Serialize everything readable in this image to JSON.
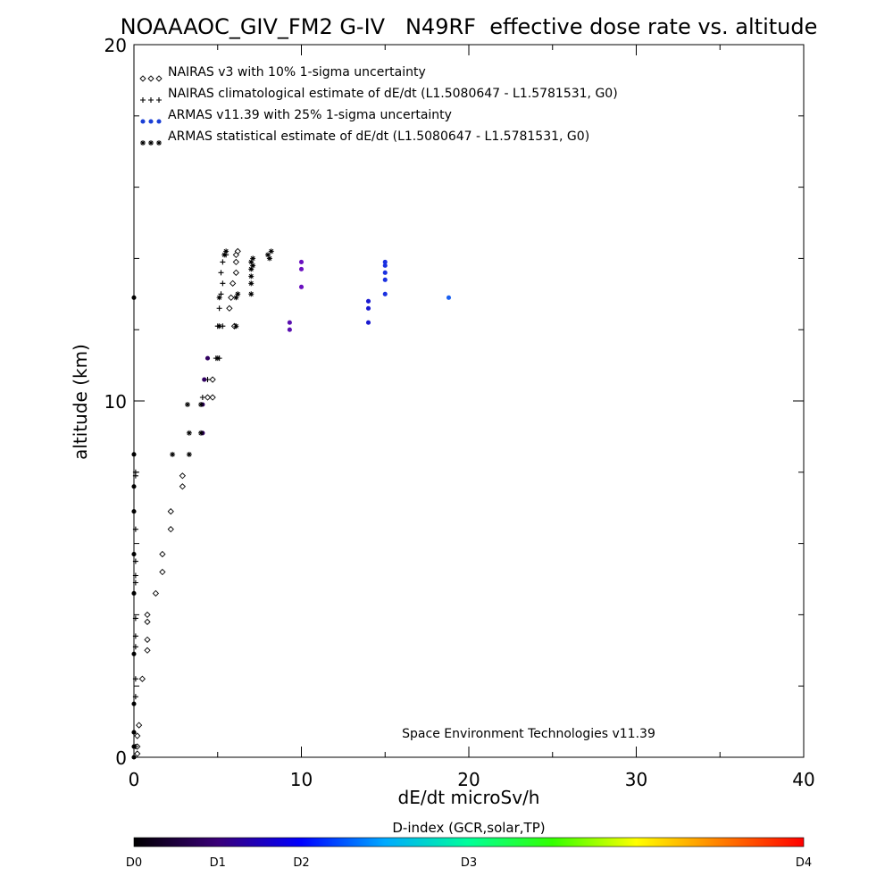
{
  "chart_data": {
    "type": "scatter",
    "title": "NOAAAOC_GIV_FM2 G-IV   N49RF  effective dose rate vs. altitude",
    "xlabel": "dE/dt microSv/h",
    "ylabel": "altitude (km)",
    "xlim": [
      0,
      40
    ],
    "ylim": [
      0,
      20
    ],
    "x_ticks": [
      0,
      10,
      20,
      30,
      40
    ],
    "y_ticks": [
      0,
      10,
      20
    ],
    "x_minor_step": 5,
    "y_minor_step": 2,
    "grid": false,
    "legend_position": "top-left",
    "annotation": "Space Environment Technologies v11.39",
    "colorbar": {
      "title": "D-index (GCR,solar,TP)",
      "labels": [
        {
          "text": "D0",
          "value": 0
        },
        {
          "text": "D1",
          "value": 5
        },
        {
          "text": "D2",
          "value": 10
        },
        {
          "text": "D3",
          "value": 20
        },
        {
          "text": "D4",
          "value": 40
        }
      ],
      "range": [
        0,
        40
      ],
      "gradient": [
        "#000000",
        "#3a0078",
        "#0000ff",
        "#00aaff",
        "#00ff99",
        "#33ff00",
        "#ffff00",
        "#ff7f00",
        "#ff0000"
      ]
    },
    "series": [
      {
        "name": "NAIRAS v3 with 10% 1-sigma uncertainty",
        "marker": "diamond",
        "color": "#000000",
        "points": [
          [
            0.2,
            0.1
          ],
          [
            0.2,
            0.3
          ],
          [
            0.2,
            0.6
          ],
          [
            0.3,
            0.9
          ],
          [
            0.5,
            2.2
          ],
          [
            0.8,
            3.0
          ],
          [
            0.8,
            3.3
          ],
          [
            0.8,
            3.8
          ],
          [
            0.8,
            4.0
          ],
          [
            1.3,
            4.6
          ],
          [
            1.7,
            5.2
          ],
          [
            1.7,
            5.7
          ],
          [
            2.2,
            6.4
          ],
          [
            2.2,
            6.9
          ],
          [
            2.9,
            7.6
          ],
          [
            2.9,
            7.9
          ],
          [
            4.4,
            10.1
          ],
          [
            4.7,
            10.1
          ],
          [
            4.7,
            10.6
          ],
          [
            6.0,
            12.1
          ],
          [
            5.7,
            12.6
          ],
          [
            5.8,
            12.9
          ],
          [
            5.9,
            13.3
          ],
          [
            6.1,
            13.6
          ],
          [
            6.1,
            13.9
          ],
          [
            6.1,
            14.1
          ],
          [
            6.2,
            14.2
          ]
        ]
      },
      {
        "name": "NAIRAS climatological estimate of dE/dt (L1.5080647 - L1.5781531, G0)",
        "marker": "plus",
        "color": "#000000",
        "points": [
          [
            0.1,
            0.3
          ],
          [
            0.1,
            1.7
          ],
          [
            0.1,
            2.2
          ],
          [
            0.1,
            3.1
          ],
          [
            0.1,
            3.4
          ],
          [
            0.1,
            3.9
          ],
          [
            0.1,
            4.9
          ],
          [
            0.1,
            5.1
          ],
          [
            0.1,
            5.5
          ],
          [
            0.1,
            6.4
          ],
          [
            0.1,
            7.9
          ],
          [
            0.1,
            8.0
          ],
          [
            4.1,
            10.1
          ],
          [
            4.4,
            10.6
          ],
          [
            4.9,
            11.2
          ],
          [
            5.1,
            11.2
          ],
          [
            5.0,
            12.1
          ],
          [
            5.3,
            12.1
          ],
          [
            5.1,
            12.6
          ],
          [
            5.2,
            13.0
          ],
          [
            5.3,
            13.3
          ],
          [
            5.2,
            13.6
          ],
          [
            5.3,
            13.9
          ],
          [
            5.5,
            14.1
          ]
        ]
      },
      {
        "name": "ARMAS v11.39 with 25% 1-sigma uncertainty",
        "marker": "circle",
        "color": "#1a3fd6",
        "points": [
          [
            0.0,
            0.0
          ],
          [
            0.0,
            0.3
          ],
          [
            0.0,
            0.7
          ],
          [
            0.0,
            1.5
          ],
          [
            0.0,
            2.9
          ],
          [
            0.0,
            4.6
          ],
          [
            0.0,
            5.7
          ],
          [
            0.0,
            6.9
          ],
          [
            0.0,
            7.6
          ],
          [
            0.0,
            8.5
          ],
          [
            0.0,
            12.9
          ],
          [
            4.1,
            9.1
          ],
          [
            4.1,
            9.9
          ],
          [
            4.2,
            10.6
          ],
          [
            4.4,
            11.2
          ],
          [
            9.3,
            12.0
          ],
          [
            9.3,
            12.2
          ],
          [
            10.0,
            13.2
          ],
          [
            10.0,
            13.7
          ],
          [
            10.0,
            13.9
          ],
          [
            14.0,
            12.2
          ],
          [
            14.0,
            12.6
          ],
          [
            14.0,
            12.8
          ],
          [
            15.0,
            13.0
          ],
          [
            15.0,
            13.4
          ],
          [
            15.0,
            13.6
          ],
          [
            15.0,
            13.8
          ],
          [
            15.0,
            13.9
          ],
          [
            18.8,
            12.9
          ]
        ],
        "point_colors": [
          "#000000",
          "#000000",
          "#000000",
          "#000000",
          "#000000",
          "#000000",
          "#000000",
          "#000000",
          "#000000",
          "#000000",
          "#000000",
          "#300060",
          "#300060",
          "#300060",
          "#300060",
          "#5a10b0",
          "#5a10b0",
          "#6a10c0",
          "#6a10c0",
          "#6a10c0",
          "#1a1ad0",
          "#1a1ad0",
          "#1a1ad0",
          "#1a30e0",
          "#1a30e0",
          "#1a30e0",
          "#1a30e0",
          "#1a30e0",
          "#1a60f0"
        ]
      },
      {
        "name": "ARMAS statistical estimate of dE/dt (L1.5080647 - L1.5781531, G0)",
        "marker": "asterisk",
        "color": "#000000",
        "points": [
          [
            2.3,
            8.5
          ],
          [
            3.3,
            8.5
          ],
          [
            3.3,
            9.1
          ],
          [
            3.2,
            9.9
          ],
          [
            4.0,
            9.9
          ],
          [
            4.0,
            9.1
          ],
          [
            5.0,
            11.2
          ],
          [
            5.1,
            12.1
          ],
          [
            6.1,
            12.1
          ],
          [
            5.1,
            12.9
          ],
          [
            6.1,
            12.9
          ],
          [
            6.2,
            13.0
          ],
          [
            5.4,
            14.1
          ],
          [
            5.5,
            14.2
          ],
          [
            7.0,
            13.0
          ],
          [
            7.0,
            13.3
          ],
          [
            7.0,
            13.5
          ],
          [
            7.0,
            13.7
          ],
          [
            7.1,
            13.8
          ],
          [
            7.0,
            13.9
          ],
          [
            7.1,
            14.0
          ],
          [
            8.1,
            14.0
          ],
          [
            8.0,
            14.1
          ],
          [
            8.2,
            14.2
          ]
        ]
      }
    ]
  }
}
